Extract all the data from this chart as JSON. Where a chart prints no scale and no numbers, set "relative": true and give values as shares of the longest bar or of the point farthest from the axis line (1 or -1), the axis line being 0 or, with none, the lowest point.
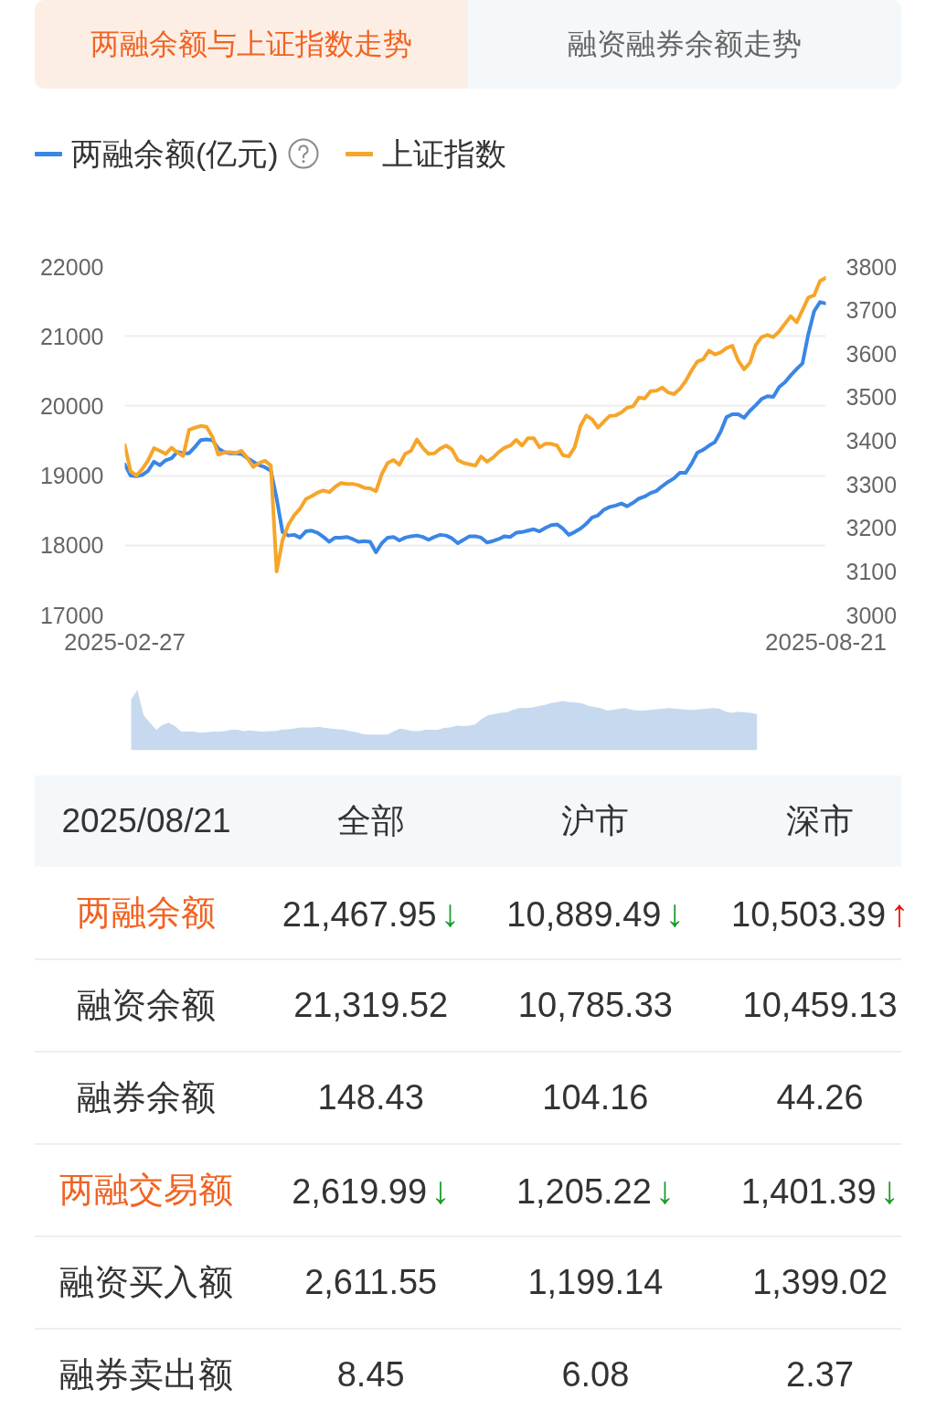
{
  "chart_data": [
    {
      "type": "line",
      "title": "两融余额与上证指数走势",
      "annotations": [
        "融资融券余额走势"
      ],
      "categories": [
        "2025-02-27",
        null,
        null,
        null,
        null,
        null,
        null,
        null,
        null,
        null,
        null,
        null,
        null,
        null,
        null,
        null,
        null,
        null,
        null,
        null,
        null,
        null,
        null,
        null,
        null,
        null,
        null,
        null,
        null,
        null,
        null,
        null,
        null,
        null,
        null,
        null,
        null,
        null,
        null,
        null,
        null,
        null,
        null,
        null,
        null,
        null,
        null,
        null,
        null,
        null,
        null,
        null,
        null,
        null,
        null,
        null,
        null,
        null,
        null,
        null,
        null,
        null,
        null,
        null,
        null,
        null,
        null,
        null,
        null,
        null,
        null,
        null,
        null,
        null,
        null,
        null,
        null,
        null,
        null,
        null,
        null,
        null,
        null,
        null,
        null,
        null,
        null,
        null,
        null,
        null,
        null,
        null,
        null,
        null,
        null,
        null,
        null,
        null,
        null,
        null,
        null,
        null,
        null,
        null,
        null,
        null,
        null,
        null,
        null,
        null,
        null,
        null,
        null,
        null,
        null,
        null,
        null,
        null,
        null,
        null,
        "2025-08-21"
      ],
      "series": [
        {
          "name": "两融余额(亿元)",
          "color": "#3a86e6",
          "values": [
            19160,
            19000,
            18990,
            19010,
            19070,
            19200,
            19150,
            19220,
            19250,
            19340,
            19320,
            19320,
            19410,
            19510,
            19520,
            19510,
            19390,
            19340,
            19320,
            19320,
            19310,
            19250,
            19200,
            19150,
            19120,
            19070,
            18670,
            18190,
            18140,
            18150,
            18110,
            18200,
            18210,
            18180,
            18120,
            18050,
            18110,
            18110,
            18120,
            18090,
            18050,
            18060,
            18050,
            17900,
            18030,
            18110,
            18120,
            18070,
            18110,
            18130,
            18140,
            18120,
            18080,
            18120,
            18150,
            18140,
            18100,
            18030,
            18080,
            18130,
            18130,
            18110,
            18040,
            18060,
            18090,
            18130,
            18120,
            18180,
            18190,
            18210,
            18230,
            18200,
            18250,
            18290,
            18300,
            18240,
            18150,
            18190,
            18240,
            18310,
            18400,
            18430,
            18510,
            18550,
            18570,
            18600,
            18560,
            18610,
            18670,
            18700,
            18750,
            18780,
            18850,
            18910,
            18960,
            19040,
            19040,
            19170,
            19330,
            19370,
            19430,
            19480,
            19630,
            19840,
            19880,
            19880,
            19830,
            19930,
            20010,
            20100,
            20140,
            20130,
            20270,
            20340,
            20440,
            20530,
            20610,
            21030,
            21360,
            21490,
            21470
          ]
        },
        {
          "name": "上证指数",
          "color": "#f6a52a",
          "axis": "y2",
          "values": [
            3390,
            3330,
            3320,
            3335,
            3355,
            3383,
            3377,
            3370,
            3384,
            3373,
            3365,
            3425,
            3430,
            3434,
            3432,
            3409,
            3368,
            3373,
            3374,
            3372,
            3377,
            3360,
            3340,
            3349,
            3354,
            3343,
            3100,
            3172,
            3207,
            3229,
            3244,
            3266,
            3273,
            3281,
            3286,
            3282,
            3294,
            3303,
            3301,
            3301,
            3298,
            3292,
            3291,
            3284,
            3324,
            3349,
            3356,
            3345,
            3370,
            3377,
            3403,
            3384,
            3370,
            3371,
            3382,
            3389,
            3380,
            3356,
            3349,
            3346,
            3343,
            3364,
            3352,
            3361,
            3374,
            3384,
            3389,
            3402,
            3389,
            3406,
            3406,
            3385,
            3393,
            3393,
            3389,
            3367,
            3364,
            3385,
            3434,
            3458,
            3449,
            3430,
            3444,
            3457,
            3458,
            3465,
            3476,
            3479,
            3499,
            3497,
            3514,
            3515,
            3522,
            3511,
            3507,
            3519,
            3537,
            3561,
            3582,
            3587,
            3607,
            3598,
            3603,
            3613,
            3618,
            3584,
            3564,
            3579,
            3620,
            3638,
            3643,
            3638,
            3651,
            3669,
            3686,
            3672,
            3700,
            3729,
            3734,
            3767,
            3774
          ]
        }
      ],
      "ylim": [
        17000,
        22000
      ],
      "yticks": [
        17000,
        18000,
        19000,
        20000,
        21000,
        22000
      ],
      "y2lim": [
        3000,
        3800
      ],
      "y2ticks": [
        3000,
        3100,
        3200,
        3300,
        3400,
        3500,
        3600,
        3700,
        3800
      ],
      "grid": "y",
      "legend": "top left"
    },
    {
      "type": "area",
      "relative": true,
      "color": "#c7d9ef",
      "categories": [
        null,
        null,
        null,
        null,
        null,
        null,
        null,
        null,
        null,
        null,
        null,
        null,
        null,
        null,
        null,
        null,
        null,
        null,
        null,
        null,
        null,
        null,
        null,
        null,
        null,
        null,
        null,
        null,
        null,
        null,
        null,
        null,
        null,
        null,
        null,
        null,
        null,
        null,
        null,
        null,
        null,
        null,
        null,
        null,
        null,
        null,
        null,
        null,
        null,
        null,
        null,
        null,
        null,
        null,
        null,
        null,
        null,
        null,
        null,
        null,
        null,
        null,
        null,
        null,
        null,
        null,
        null,
        null,
        null,
        null,
        null,
        null,
        null,
        null,
        null,
        null,
        null,
        null,
        null,
        null,
        null,
        null,
        null,
        null,
        null,
        null,
        null,
        null,
        null,
        null,
        null,
        null,
        null,
        null,
        null,
        null,
        null,
        null,
        null,
        null,
        null,
        null,
        null,
        null,
        null,
        null,
        null,
        null,
        null,
        null,
        null,
        null
      ],
      "values": [
        0.84,
        1.0,
        0.58,
        0.46,
        0.34,
        0.42,
        0.46,
        0.4,
        0.31,
        0.31,
        0.31,
        0.29,
        0.3,
        0.31,
        0.31,
        0.32,
        0.34,
        0.34,
        0.32,
        0.33,
        0.32,
        0.31,
        0.32,
        0.32,
        0.34,
        0.35,
        0.36,
        0.38,
        0.38,
        0.38,
        0.39,
        0.37,
        0.36,
        0.35,
        0.34,
        0.32,
        0.3,
        0.27,
        0.26,
        0.26,
        0.26,
        0.26,
        0.32,
        0.36,
        0.34,
        0.32,
        0.32,
        0.34,
        0.34,
        0.34,
        0.37,
        0.38,
        0.41,
        0.4,
        0.41,
        0.43,
        0.52,
        0.58,
        0.6,
        0.62,
        0.63,
        0.67,
        0.7,
        0.7,
        0.71,
        0.73,
        0.75,
        0.78,
        0.8,
        0.82,
        0.8,
        0.79,
        0.78,
        0.74,
        0.72,
        0.7,
        0.66,
        0.67,
        0.69,
        0.7,
        0.67,
        0.66,
        0.66,
        0.67,
        0.68,
        0.69,
        0.7,
        0.69,
        0.68,
        0.67,
        0.67,
        0.68,
        0.69,
        0.7,
        0.69,
        0.64,
        0.62,
        0.64,
        0.63,
        0.62,
        0.6,
        null,
        null,
        null,
        null,
        null,
        null,
        null,
        null,
        null,
        null,
        null
      ]
    },
    {
      "type": "other",
      "title": "2025/08/21",
      "categories": [
        "两融余额",
        "融资余额",
        "融券余额",
        "两融交易额",
        "融资买入额",
        "融券卖出额"
      ],
      "colors": [
        "#f26322",
        "#333333",
        "#333333",
        "#f26322",
        "#333333",
        "#333333"
      ],
      "series": [
        {
          "name": "全部",
          "values": [
            21467.95,
            21319.52,
            148.43,
            2619.99,
            2611.55,
            8.45
          ],
          "value_labels": [
            "21,467.95↓",
            "21,319.52",
            "148.43",
            "2,619.99↓",
            "2,611.55",
            "8.45"
          ]
        },
        {
          "name": "沪市",
          "values": [
            10889.49,
            10785.33,
            104.16,
            1205.22,
            1199.14,
            6.08
          ],
          "value_labels": [
            "10,889.49↓",
            "10,785.33",
            "104.16",
            "1,205.22↓",
            "1,199.14",
            "6.08"
          ]
        },
        {
          "name": "深市",
          "values": [
            10503.39,
            10459.13,
            44.26,
            1401.39,
            1399.02,
            2.37
          ],
          "value_labels": [
            "10,503.39↑",
            "10,459.13",
            "44.26",
            "1,401.39↓",
            "1,399.02",
            "2.37"
          ]
        }
      ]
    }
  ]
}
